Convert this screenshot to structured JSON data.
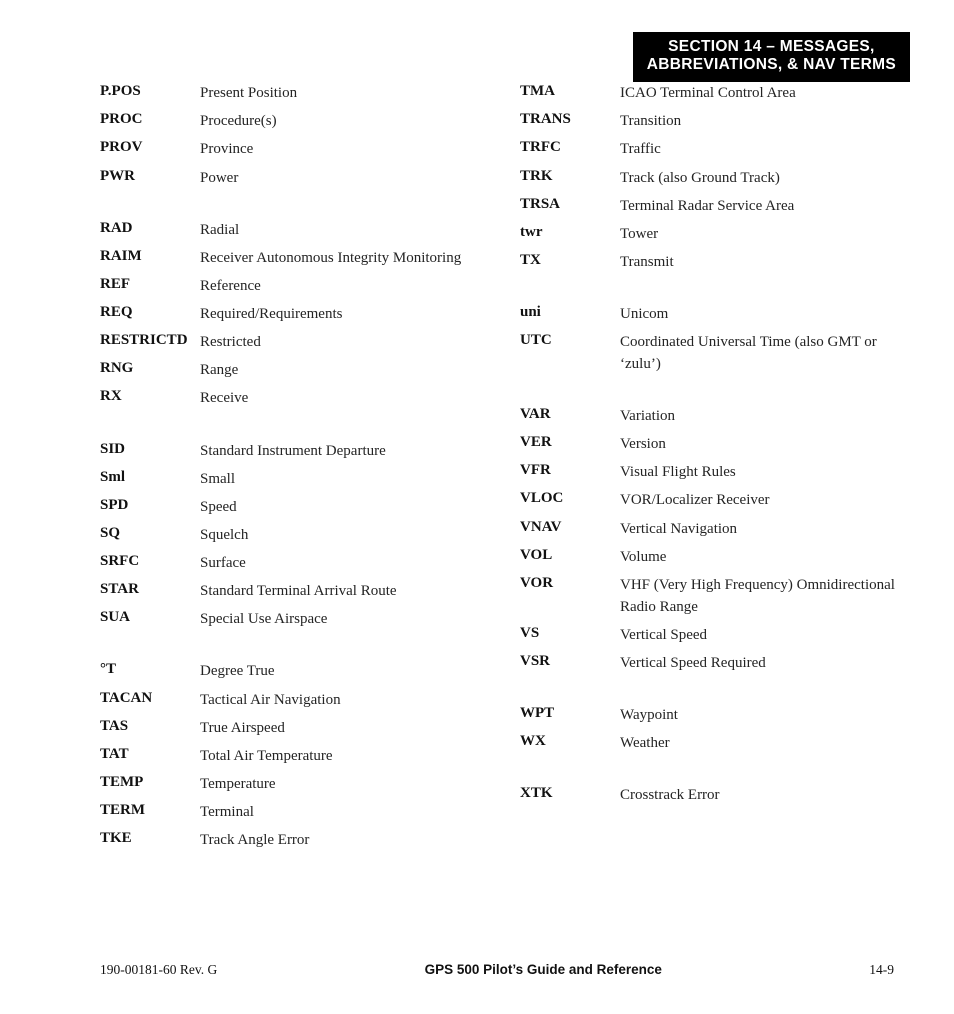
{
  "section_banner": {
    "line1": "SECTION 14 – MESSAGES,",
    "line2": "ABBREVIATIONS, & NAV TERMS"
  },
  "left_groups": [
    [
      {
        "abbr": "P.POS",
        "def": "Present Position"
      },
      {
        "abbr": "PROC",
        "def": "Procedure(s)"
      },
      {
        "abbr": "PROV",
        "def": "Province"
      },
      {
        "abbr": "PWR",
        "def": "Power"
      }
    ],
    [
      {
        "abbr": "RAD",
        "def": "Radial"
      },
      {
        "abbr": "RAIM",
        "def": "Receiver Autonomous Integrity Monitoring"
      },
      {
        "abbr": "REF",
        "def": "Reference"
      },
      {
        "abbr": "REQ",
        "def": "Required/Requirements"
      },
      {
        "abbr": "RESTRICTD",
        "def": "Restricted"
      },
      {
        "abbr": "RNG",
        "def": "Range"
      },
      {
        "abbr": "RX",
        "def": "Receive"
      }
    ],
    [
      {
        "abbr": "SID",
        "def": "Standard Instrument Departure"
      },
      {
        "abbr": "Sml",
        "def": "Small"
      },
      {
        "abbr": "SPD",
        "def": "Speed"
      },
      {
        "abbr": "SQ",
        "def": "Squelch"
      },
      {
        "abbr": "SRFC",
        "def": "Surface"
      },
      {
        "abbr": "STAR",
        "def": "Standard Terminal Arrival Route"
      },
      {
        "abbr": "SUA",
        "def": "Special Use Airspace"
      }
    ],
    [
      {
        "abbr": "°T",
        "def": "Degree True"
      },
      {
        "abbr": "TACAN",
        "def": "Tactical Air Navigation"
      },
      {
        "abbr": "TAS",
        "def": "True Airspeed"
      },
      {
        "abbr": "TAT",
        "def": "Total Air Temperature"
      },
      {
        "abbr": "TEMP",
        "def": "Temperature"
      },
      {
        "abbr": "TERM",
        "def": "Terminal"
      },
      {
        "abbr": "TKE",
        "def": "Track Angle Error"
      }
    ]
  ],
  "right_groups": [
    [
      {
        "abbr": "TMA",
        "def": "ICAO Terminal Control Area"
      },
      {
        "abbr": "TRANS",
        "def": "Transition"
      },
      {
        "abbr": "TRFC",
        "def": "Traffic"
      },
      {
        "abbr": "TRK",
        "def": "Track (also Ground Track)"
      },
      {
        "abbr": "TRSA",
        "def": "Terminal Radar Service Area"
      },
      {
        "abbr": "twr",
        "def": "Tower"
      },
      {
        "abbr": "TX",
        "def": "Transmit"
      }
    ],
    [
      {
        "abbr": "uni",
        "def": "Unicom"
      },
      {
        "abbr": "UTC",
        "def": "Coordinated Universal Time (also GMT or ‘zulu’)"
      }
    ],
    [
      {
        "abbr": "VAR",
        "def": "Variation"
      },
      {
        "abbr": "VER",
        "def": "Version"
      },
      {
        "abbr": "VFR",
        "def": "Visual Flight Rules"
      },
      {
        "abbr": "VLOC",
        "def": "VOR/Localizer Receiver"
      },
      {
        "abbr": "VNAV",
        "def": "Vertical Navigation"
      },
      {
        "abbr": "VOL",
        "def": "Volume"
      },
      {
        "abbr": "VOR",
        "def": "VHF (Very High Frequency) Omnidirectional Radio Range"
      },
      {
        "abbr": "VS",
        "def": "Vertical Speed"
      },
      {
        "abbr": "VSR",
        "def": "Vertical Speed Required"
      }
    ],
    [
      {
        "abbr": "WPT",
        "def": "Waypoint"
      },
      {
        "abbr": "WX",
        "def": "Weather"
      }
    ],
    [
      {
        "abbr": "XTK",
        "def": "Crosstrack Error"
      }
    ]
  ],
  "footer": {
    "left": "190-00181-60  Rev. G",
    "center": "GPS 500 Pilot’s Guide and Reference",
    "right": "14-9"
  }
}
